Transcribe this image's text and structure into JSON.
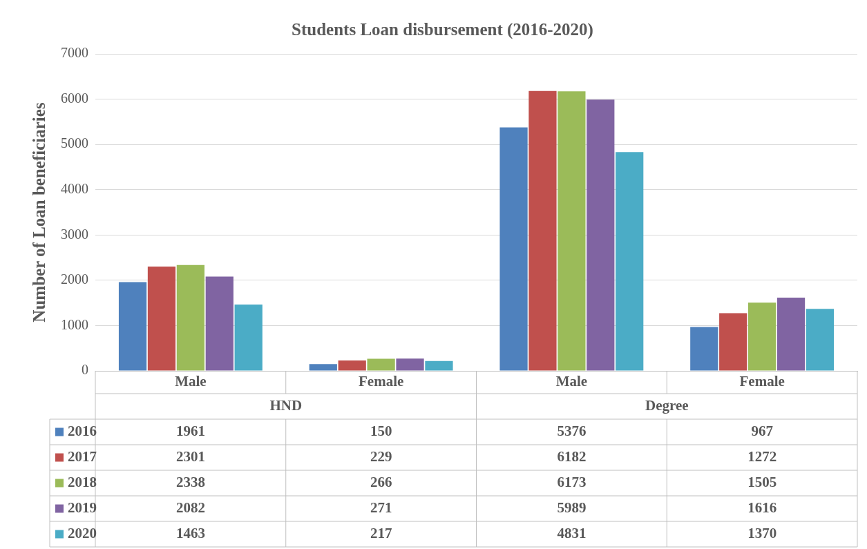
{
  "chart_data": {
    "type": "bar",
    "title": "Students Loan disbursement (2016-2020)",
    "ylabel": "Number of Loan beneficiaries",
    "categories": [
      "Male",
      "Female",
      "Male",
      "Female"
    ],
    "annotations": [
      "HND",
      "Degree"
    ],
    "series": [
      {
        "name": "2016",
        "color": "#4f81bd",
        "values": [
          1961,
          150,
          5376,
          967
        ]
      },
      {
        "name": "2017",
        "color": "#c0504d",
        "values": [
          2301,
          229,
          6182,
          1272
        ]
      },
      {
        "name": "2018",
        "color": "#9bbb59",
        "values": [
          2338,
          266,
          6173,
          1505
        ]
      },
      {
        "name": "2019",
        "color": "#8064a2",
        "values": [
          2082,
          271,
          5989,
          1616
        ]
      },
      {
        "name": "2020",
        "color": "#4bacc6",
        "values": [
          1463,
          217,
          4831,
          1370
        ]
      }
    ],
    "ylim": [
      0,
      7000
    ],
    "yticks": [
      0,
      1000,
      2000,
      3000,
      4000,
      5000,
      6000,
      7000
    ],
    "grid": "y",
    "legend": "bottom",
    "data_labels": true
  }
}
